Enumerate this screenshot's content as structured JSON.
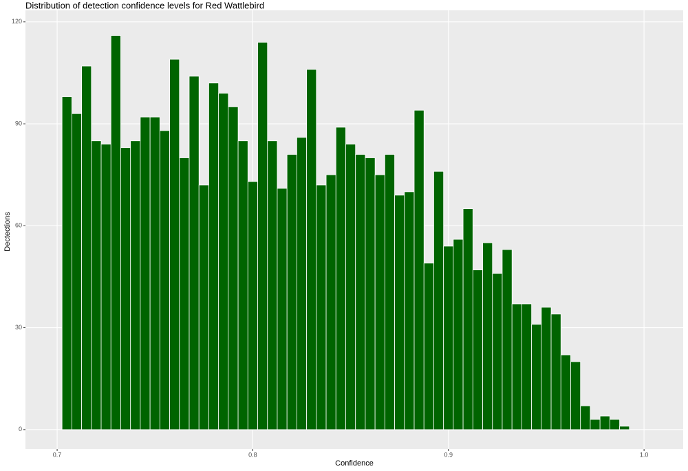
{
  "chart_data": {
    "type": "histogram",
    "title": "Distribution of detection confidence levels for Red Wattlebird",
    "x_label": "Confidence",
    "y_label": "Dectections",
    "bins": [
      0.7025,
      0.7075,
      0.7125,
      0.7175,
      0.7225,
      0.7275,
      0.7325,
      0.7375,
      0.7425,
      0.7475,
      0.7525,
      0.7575,
      0.7625,
      0.7675,
      0.7725,
      0.7775,
      0.7825,
      0.7875,
      0.7925,
      0.7975,
      0.8025,
      0.8075,
      0.8125,
      0.8175,
      0.8225,
      0.8275,
      0.8325,
      0.8375,
      0.8425,
      0.8475,
      0.8525,
      0.8575,
      0.8625,
      0.8675,
      0.8725,
      0.8775,
      0.8825,
      0.8875,
      0.8925,
      0.8975,
      0.9025,
      0.9075,
      0.9125,
      0.9175,
      0.9225,
      0.9275,
      0.9325,
      0.9375,
      0.9425,
      0.9475,
      0.9525,
      0.9575,
      0.9625,
      0.9675,
      0.9725,
      0.9775,
      0.9825,
      0.9875,
      0.9925
    ],
    "values": [
      98,
      93,
      107,
      85,
      84,
      116,
      83,
      85,
      92,
      92,
      88,
      109,
      80,
      104,
      72,
      102,
      99,
      95,
      85,
      73,
      114,
      85,
      71,
      81,
      86,
      106,
      72,
      75,
      89,
      84,
      81,
      80,
      75,
      81,
      69,
      70,
      94,
      49,
      76,
      54,
      56,
      65,
      47,
      55,
      46,
      53,
      37,
      37,
      31,
      36,
      34,
      22,
      20,
      7,
      3,
      4,
      3,
      1
    ],
    "color": "#006400",
    "xlim": [
      0.6838,
      1.02
    ],
    "ylim": [
      -5.7,
      123.4
    ],
    "xticks": [
      0.7,
      0.8,
      0.9,
      {
        "value": 1,
        "label": "1.0"
      }
    ],
    "yticks": [
      0,
      30,
      60,
      90,
      120
    ],
    "grid": true
  }
}
